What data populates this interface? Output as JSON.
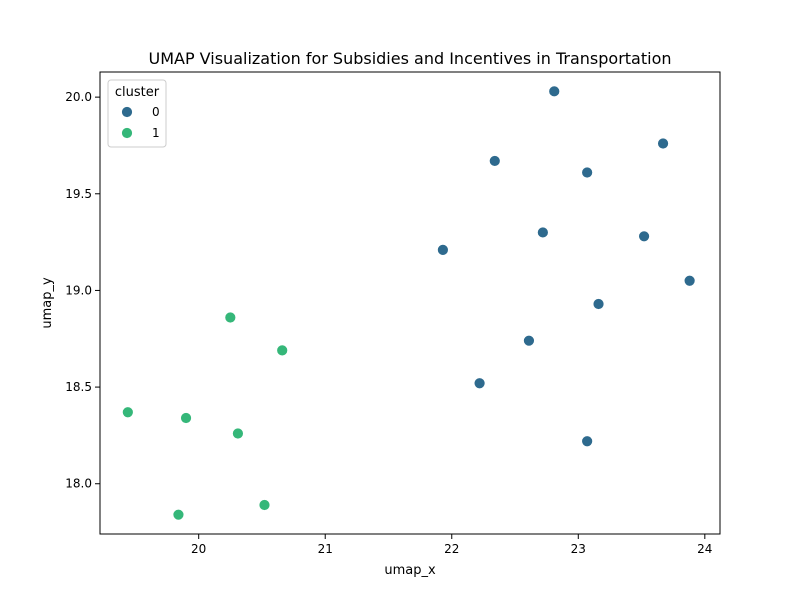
{
  "chart_data": {
    "type": "scatter",
    "title": "UMAP Visualization for Subsidies and Incentives in Transportation",
    "xlabel": "umap_x",
    "ylabel": "umap_y",
    "xlim": [
      19.22,
      24.12
    ],
    "ylim": [
      17.74,
      20.13
    ],
    "xticks": [
      20,
      21,
      22,
      23,
      24
    ],
    "yticks": [
      18.0,
      18.5,
      19.0,
      19.5,
      20.0
    ],
    "xtick_labels": [
      "20",
      "21",
      "22",
      "23",
      "24"
    ],
    "ytick_labels": [
      "18.0",
      "18.5",
      "19.0",
      "19.5",
      "20.0"
    ],
    "grid": false,
    "legend": {
      "title": "cluster",
      "placement": "top-left"
    },
    "series": [
      {
        "name": "0",
        "color": "#2e6a8e",
        "points": [
          [
            22.81,
            20.03
          ],
          [
            23.67,
            19.76
          ],
          [
            22.34,
            19.67
          ],
          [
            23.07,
            19.61
          ],
          [
            22.72,
            19.3
          ],
          [
            23.52,
            19.28
          ],
          [
            21.93,
            19.21
          ],
          [
            23.88,
            19.05
          ],
          [
            23.16,
            18.93
          ],
          [
            22.61,
            18.74
          ],
          [
            22.22,
            18.52
          ],
          [
            23.07,
            18.22
          ]
        ]
      },
      {
        "name": "1",
        "color": "#35b779",
        "points": [
          [
            20.25,
            18.86
          ],
          [
            20.66,
            18.69
          ],
          [
            19.44,
            18.37
          ],
          [
            19.9,
            18.34
          ],
          [
            20.31,
            18.26
          ],
          [
            20.52,
            17.89
          ],
          [
            19.84,
            17.84
          ]
        ]
      }
    ]
  }
}
